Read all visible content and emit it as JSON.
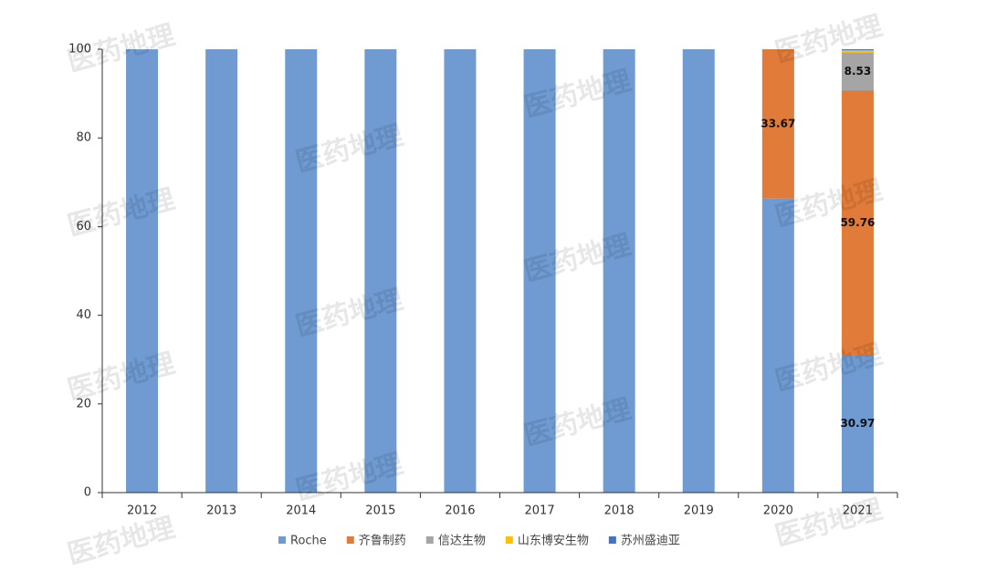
{
  "chart_data": {
    "type": "stacked_bar",
    "categories": [
      "2012",
      "2013",
      "2014",
      "2015",
      "2016",
      "2017",
      "2018",
      "2019",
      "2020",
      "2021"
    ],
    "series": [
      {
        "name": "Roche",
        "color": "#6f9bd2",
        "values": [
          100,
          100,
          100,
          100,
          100,
          100,
          100,
          100,
          66.33,
          30.97
        ],
        "value_labels": [
          null,
          null,
          null,
          null,
          null,
          null,
          null,
          null,
          null,
          "30.97"
        ]
      },
      {
        "name": "齐鲁制药",
        "color": "#e07b39",
        "values": [
          0,
          0,
          0,
          0,
          0,
          0,
          0,
          0,
          33.67,
          59.76
        ],
        "value_labels": [
          null,
          null,
          null,
          null,
          null,
          null,
          null,
          null,
          "33.67",
          "59.76"
        ]
      },
      {
        "name": "信达生物",
        "color": "#a5a5a5",
        "values": [
          0,
          0,
          0,
          0,
          0,
          0,
          0,
          0,
          0,
          8.53
        ],
        "value_labels": [
          null,
          null,
          null,
          null,
          null,
          null,
          null,
          null,
          null,
          "8.53"
        ]
      },
      {
        "name": "山东博安生物",
        "color": "#ffc000",
        "values": [
          0,
          0,
          0,
          0,
          0,
          0,
          0,
          0,
          0,
          0.5
        ],
        "value_labels": [
          null,
          null,
          null,
          null,
          null,
          null,
          null,
          null,
          null,
          null
        ]
      },
      {
        "name": "苏州盛迪亚",
        "color": "#4472c4",
        "values": [
          0,
          0,
          0,
          0,
          0,
          0,
          0,
          0,
          0,
          0.24
        ],
        "value_labels": [
          null,
          null,
          null,
          null,
          null,
          null,
          null,
          null,
          null,
          null
        ]
      }
    ],
    "ylim": [
      0,
      100
    ],
    "yticks": [
      0,
      20,
      40,
      60,
      80,
      100
    ],
    "grid": false,
    "legend": "bottom",
    "watermark": "医药地理"
  }
}
